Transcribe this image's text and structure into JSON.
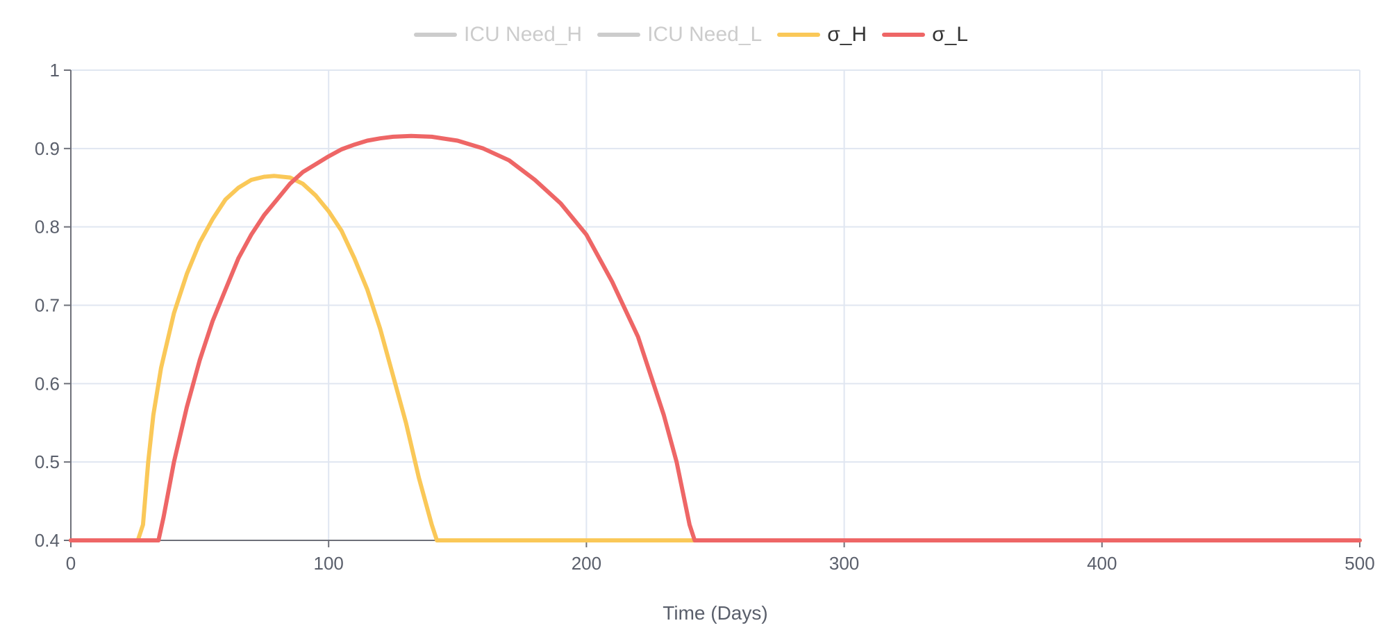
{
  "legend": {
    "items": [
      {
        "label": "ICU Need_H",
        "color": "#cccccc",
        "visible": false
      },
      {
        "label": "ICU Need_L",
        "color": "#cccccc",
        "visible": false
      },
      {
        "label": "σ_H",
        "color": "#fac858",
        "visible": true
      },
      {
        "label": "σ_L",
        "color": "#ee6666",
        "visible": true
      }
    ]
  },
  "chart_data": {
    "type": "line",
    "xlabel": "Time (Days)",
    "ylabel": "",
    "xlim": [
      0,
      500
    ],
    "ylim": [
      0.4,
      1
    ],
    "x_ticks": [
      0,
      100,
      200,
      300,
      400,
      500
    ],
    "y_ticks": [
      0.4,
      0.5,
      0.6,
      0.7,
      0.8,
      0.9,
      1
    ],
    "grid": true,
    "legend_position": "top-center",
    "series": [
      {
        "name": "σ_H",
        "color": "#fac858",
        "points": [
          [
            0,
            0.4
          ],
          [
            26,
            0.4
          ],
          [
            28,
            0.42
          ],
          [
            30,
            0.5
          ],
          [
            32,
            0.56
          ],
          [
            35,
            0.62
          ],
          [
            40,
            0.69
          ],
          [
            45,
            0.74
          ],
          [
            50,
            0.78
          ],
          [
            55,
            0.81
          ],
          [
            60,
            0.835
          ],
          [
            65,
            0.85
          ],
          [
            70,
            0.86
          ],
          [
            75,
            0.864
          ],
          [
            79,
            0.865
          ],
          [
            85,
            0.863
          ],
          [
            90,
            0.855
          ],
          [
            95,
            0.84
          ],
          [
            100,
            0.82
          ],
          [
            105,
            0.795
          ],
          [
            110,
            0.76
          ],
          [
            115,
            0.72
          ],
          [
            120,
            0.67
          ],
          [
            125,
            0.61
          ],
          [
            130,
            0.55
          ],
          [
            135,
            0.48
          ],
          [
            140,
            0.42
          ],
          [
            142,
            0.4
          ],
          [
            500,
            0.4
          ]
        ]
      },
      {
        "name": "σ_L",
        "color": "#ee6666",
        "points": [
          [
            0,
            0.4
          ],
          [
            34,
            0.4
          ],
          [
            36,
            0.43
          ],
          [
            40,
            0.5
          ],
          [
            45,
            0.57
          ],
          [
            50,
            0.63
          ],
          [
            55,
            0.68
          ],
          [
            60,
            0.72
          ],
          [
            65,
            0.76
          ],
          [
            70,
            0.79
          ],
          [
            75,
            0.815
          ],
          [
            80,
            0.835
          ],
          [
            85,
            0.855
          ],
          [
            90,
            0.87
          ],
          [
            95,
            0.88
          ],
          [
            100,
            0.89
          ],
          [
            105,
            0.899
          ],
          [
            110,
            0.905
          ],
          [
            115,
            0.91
          ],
          [
            120,
            0.913
          ],
          [
            125,
            0.915
          ],
          [
            132,
            0.916
          ],
          [
            140,
            0.915
          ],
          [
            150,
            0.91
          ],
          [
            160,
            0.9
          ],
          [
            170,
            0.885
          ],
          [
            180,
            0.86
          ],
          [
            190,
            0.83
          ],
          [
            200,
            0.79
          ],
          [
            210,
            0.73
          ],
          [
            220,
            0.66
          ],
          [
            230,
            0.56
          ],
          [
            235,
            0.5
          ],
          [
            240,
            0.42
          ],
          [
            242,
            0.4
          ],
          [
            500,
            0.4
          ]
        ]
      }
    ]
  }
}
